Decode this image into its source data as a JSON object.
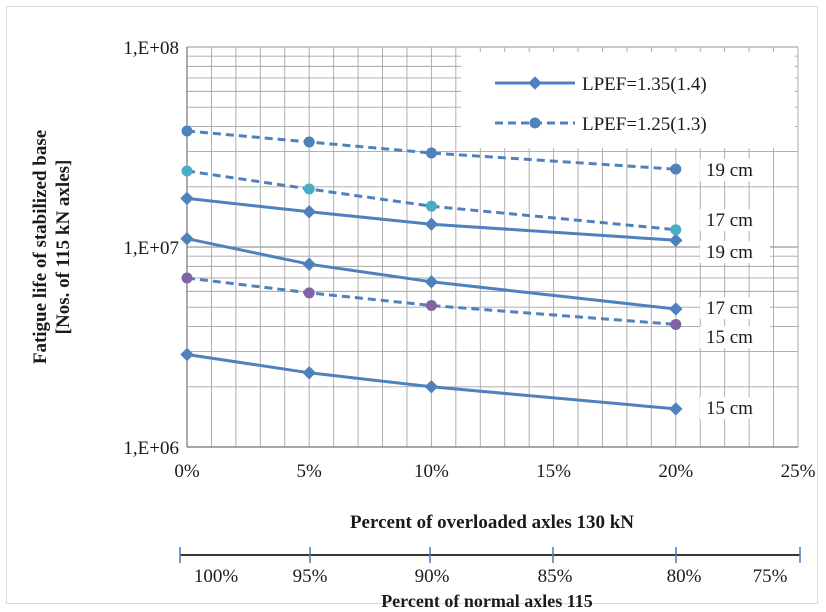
{
  "chart_data": {
    "type": "line",
    "ylabel_line1": "Fatigue life of stabilized base",
    "ylabel_line2": "[Nos. of 115 kN axles]",
    "xlabel": "Percent of overloaded axles 130 kN",
    "x2label": "Percent of normal axles 115",
    "yscale": "log",
    "ylim": [
      1000000,
      100000000
    ],
    "yticks": [
      "1,E+06",
      "1,E+07",
      "1,E+08"
    ],
    "xlim": [
      0,
      25
    ],
    "xticks": [
      "0%",
      "5%",
      "10%",
      "15%",
      "20%",
      "25%"
    ],
    "x2ticks": [
      "100%",
      "95%",
      "90%",
      "85%",
      "80%",
      "75%"
    ],
    "grid": true,
    "legend": [
      {
        "label": "LPEF=1.35(1.4)",
        "style": "solid",
        "marker": "diamond"
      },
      {
        "label": "LPEF=1.25(1.3)",
        "style": "dashed",
        "marker": "circle"
      }
    ],
    "legend_position": "top-right",
    "series": [
      {
        "group": "LPEF=1.35(1.4)",
        "style": "solid",
        "marker": "diamond",
        "color": "#4f81bd",
        "label": "19 cm",
        "x": [
          0,
          5,
          10,
          20
        ],
        "y": [
          17500000,
          15000000,
          13000000,
          10800000
        ]
      },
      {
        "group": "LPEF=1.35(1.4)",
        "style": "solid",
        "marker": "diamond",
        "color": "#4f81bd",
        "label": "17 cm",
        "x": [
          0,
          5,
          10,
          20
        ],
        "y": [
          11000000,
          8200000,
          6700000,
          4900000
        ]
      },
      {
        "group": "LPEF=1.35(1.4)",
        "style": "solid",
        "marker": "diamond",
        "color": "#4f81bd",
        "label": "15 cm",
        "x": [
          0,
          5,
          10,
          20
        ],
        "y": [
          2900000,
          2350000,
          2000000,
          1550000
        ]
      },
      {
        "group": "LPEF=1.25(1.3)",
        "style": "dashed",
        "marker": "circle",
        "color": "#4f81bd",
        "label": "19 cm",
        "x": [
          0,
          5,
          10,
          20
        ],
        "y": [
          38000000,
          33500000,
          29500000,
          24500000
        ]
      },
      {
        "group": "LPEF=1.25(1.3)",
        "style": "dashed",
        "marker": "circle",
        "color": "#4bacc6",
        "label": "17 cm",
        "x": [
          0,
          5,
          10,
          20
        ],
        "y": [
          24000000,
          19500000,
          16000000,
          12200000
        ]
      },
      {
        "group": "LPEF=1.25(1.3)",
        "style": "dashed",
        "marker": "circle",
        "color": "#8064a2",
        "label": "15 cm",
        "x": [
          0,
          5,
          10,
          20
        ],
        "y": [
          7000000,
          5900000,
          5100000,
          4100000
        ]
      }
    ],
    "labels": [
      {
        "text": "19 cm",
        "near_y": 24500000
      },
      {
        "text": "17 cm",
        "near_y": 12200000
      },
      {
        "text": "19 cm",
        "near_y": 10800000
      },
      {
        "text": "17 cm",
        "near_y": 4900000
      },
      {
        "text": "15 cm",
        "near_y": 4100000
      },
      {
        "text": "15 cm",
        "near_y": 1550000
      }
    ]
  }
}
